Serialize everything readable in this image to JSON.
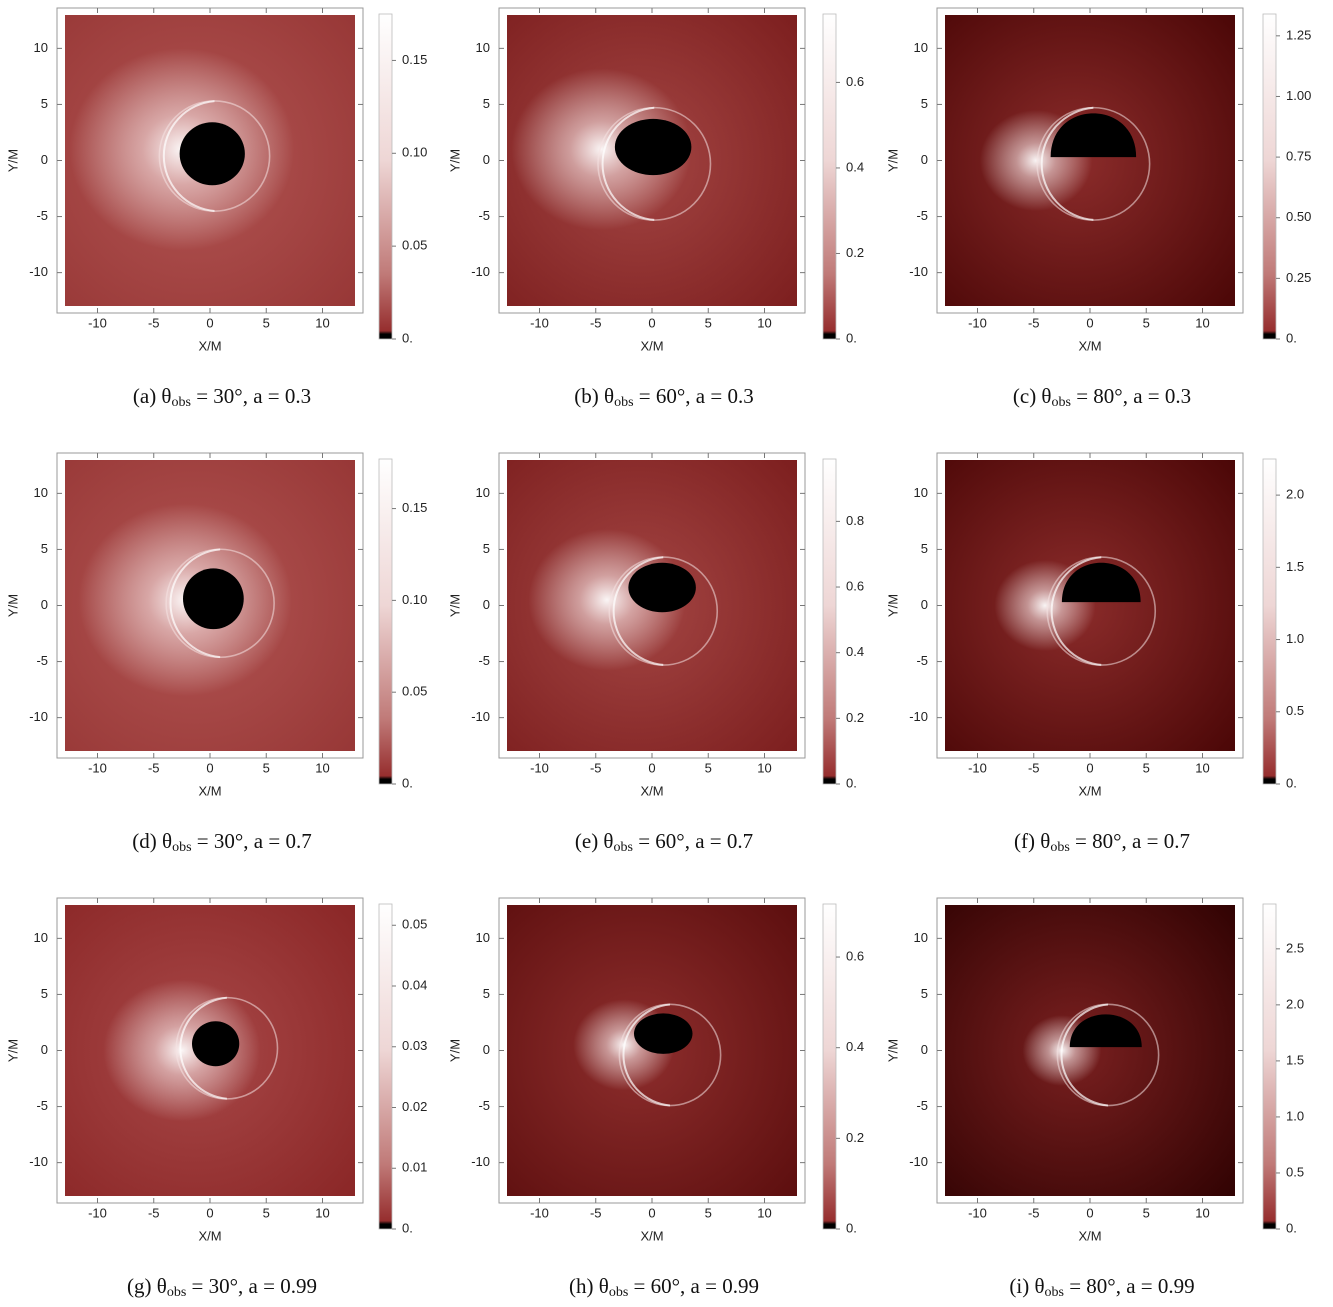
{
  "chart_data": [
    {
      "type": "heatmap",
      "caption": {
        "prefix": "(a) θ",
        "sub": "obs",
        "rest": " = 30°, a = 0.3"
      },
      "xlabel": "X/M",
      "ylabel": "Y/M",
      "xlim": [
        -13.6,
        13.6
      ],
      "ylim": [
        -13.6,
        13.6
      ],
      "xticks": [
        -10,
        -5,
        0,
        5,
        10
      ],
      "yticks": [
        -10,
        -5,
        0,
        5,
        10
      ],
      "clim": [
        0,
        0.175
      ],
      "cticks": [
        {
          "value": 0,
          "label": "0."
        },
        0.05,
        {
          "value": 0.1,
          "label": "0.10"
        },
        0.15
      ]
    },
    {
      "type": "heatmap",
      "caption": {
        "prefix": "(b) θ",
        "sub": "obs",
        "rest": " = 60°, a = 0.3"
      },
      "xlabel": "X/M",
      "ylabel": "Y/M",
      "xlim": [
        -13.6,
        13.6
      ],
      "ylim": [
        -13.6,
        13.6
      ],
      "xticks": [
        -10,
        -5,
        0,
        5,
        10
      ],
      "yticks": [
        -10,
        -5,
        0,
        5,
        10
      ],
      "clim": [
        0,
        0.76
      ],
      "cticks": [
        {
          "value": 0,
          "label": "0."
        },
        0.2,
        0.4,
        0.6
      ]
    },
    {
      "type": "heatmap",
      "caption": {
        "prefix": "(c) θ",
        "sub": "obs",
        "rest": " = 80°, a = 0.3"
      },
      "xlabel": "X/M",
      "ylabel": "Y/M",
      "xlim": [
        -13.6,
        13.6
      ],
      "ylim": [
        -13.6,
        13.6
      ],
      "xticks": [
        -10,
        -5,
        0,
        5,
        10
      ],
      "yticks": [
        -10,
        -5,
        0,
        5,
        10
      ],
      "clim": [
        0,
        1.34
      ],
      "cticks": [
        {
          "value": 0,
          "label": "0."
        },
        0.25,
        {
          "value": 0.5,
          "label": "0.50"
        },
        0.75,
        {
          "value": 1,
          "label": "1.00"
        },
        1.25
      ]
    },
    {
      "type": "heatmap",
      "caption": {
        "prefix": "(d) θ",
        "sub": "obs",
        "rest": " = 30°, a = 0.7"
      },
      "xlabel": "X/M",
      "ylabel": "Y/M",
      "xlim": [
        -13.6,
        13.6
      ],
      "ylim": [
        -13.6,
        13.6
      ],
      "xticks": [
        -10,
        -5,
        0,
        5,
        10
      ],
      "yticks": [
        -10,
        -5,
        0,
        5,
        10
      ],
      "clim": [
        0,
        0.177
      ],
      "cticks": [
        {
          "value": 0,
          "label": "0."
        },
        0.05,
        {
          "value": 0.1,
          "label": "0.10"
        },
        0.15
      ]
    },
    {
      "type": "heatmap",
      "caption": {
        "prefix": "(e) θ",
        "sub": "obs",
        "rest": " = 60°, a = 0.7"
      },
      "xlabel": "X/M",
      "ylabel": "Y/M",
      "xlim": [
        -13.6,
        13.6
      ],
      "ylim": [
        -13.6,
        13.6
      ],
      "xticks": [
        -10,
        -5,
        0,
        5,
        10
      ],
      "yticks": [
        -10,
        -5,
        0,
        5,
        10
      ],
      "clim": [
        0,
        0.99
      ],
      "cticks": [
        {
          "value": 0,
          "label": "0."
        },
        0.2,
        0.4,
        0.6,
        0.8
      ]
    },
    {
      "type": "heatmap",
      "caption": {
        "prefix": "(f) θ",
        "sub": "obs",
        "rest": " = 80°, a = 0.7"
      },
      "xlabel": "X/M",
      "ylabel": "Y/M",
      "xlim": [
        -13.6,
        13.6
      ],
      "ylim": [
        -13.6,
        13.6
      ],
      "xticks": [
        -10,
        -5,
        0,
        5,
        10
      ],
      "yticks": [
        -10,
        -5,
        0,
        5,
        10
      ],
      "clim": [
        0,
        2.25
      ],
      "cticks": [
        {
          "value": 0,
          "label": "0."
        },
        0.5,
        {
          "value": 1,
          "label": "1.0"
        },
        1.5,
        {
          "value": 2,
          "label": "2.0"
        }
      ]
    },
    {
      "type": "heatmap",
      "caption": {
        "prefix": "(g) θ",
        "sub": "obs",
        "rest": " = 30°, a = 0.99"
      },
      "xlabel": "X/M",
      "ylabel": "Y/M",
      "xlim": [
        -13.6,
        13.6
      ],
      "ylim": [
        -13.6,
        13.6
      ],
      "xticks": [
        -10,
        -5,
        0,
        5,
        10
      ],
      "yticks": [
        -10,
        -5,
        0,
        5,
        10
      ],
      "clim": [
        0,
        0.0535
      ],
      "cticks": [
        {
          "value": 0,
          "label": "0."
        },
        0.01,
        0.02,
        0.03,
        0.04,
        0.05
      ]
    },
    {
      "type": "heatmap",
      "caption": {
        "prefix": "(h) θ",
        "sub": "obs",
        "rest": " = 60°, a = 0.99"
      },
      "xlabel": "X/M",
      "ylabel": "Y/M",
      "xlim": [
        -13.6,
        13.6
      ],
      "ylim": [
        -13.6,
        13.6
      ],
      "xticks": [
        -10,
        -5,
        0,
        5,
        10
      ],
      "yticks": [
        -10,
        -5,
        0,
        5,
        10
      ],
      "clim": [
        0,
        0.717
      ],
      "cticks": [
        {
          "value": 0,
          "label": "0."
        },
        0.2,
        0.4,
        0.6
      ]
    },
    {
      "type": "heatmap",
      "caption": {
        "prefix": "(i) θ",
        "sub": "obs",
        "rest": " = 80°, a = 0.99"
      },
      "xlabel": "X/M",
      "ylabel": "Y/M",
      "xlim": [
        -13.6,
        13.6
      ],
      "ylim": [
        -13.6,
        13.6
      ],
      "xticks": [
        -10,
        -5,
        0,
        5,
        10
      ],
      "yticks": [
        -10,
        -5,
        0,
        5,
        10
      ],
      "clim": [
        0,
        2.9
      ],
      "cticks": [
        {
          "value": 0,
          "label": "0."
        },
        0.5,
        {
          "value": 1,
          "label": "1.0"
        },
        1.5,
        {
          "value": 2,
          "label": "2.0"
        },
        2.5
      ]
    }
  ]
}
